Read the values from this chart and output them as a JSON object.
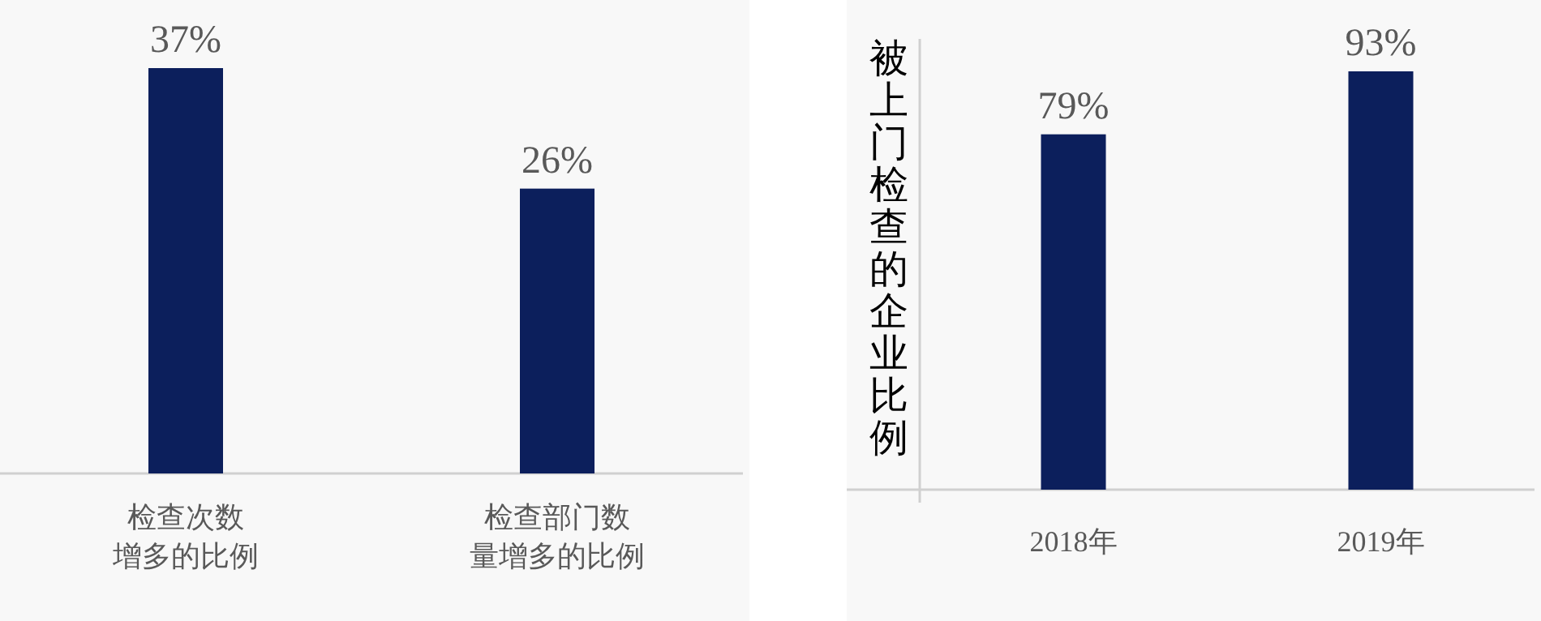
{
  "chart_data": [
    {
      "type": "bar",
      "categories": [
        "检查次数增多的比例",
        "检查部门数量增多的比例"
      ],
      "values": [
        37,
        26
      ],
      "value_labels": [
        "37%",
        "26%"
      ],
      "color": "#0c1f5c"
    },
    {
      "type": "bar",
      "ylabel": "被上门检查的企业比例",
      "categories": [
        "2018年",
        "2019年"
      ],
      "values": [
        79,
        93
      ],
      "value_labels": [
        "79%",
        "93%"
      ],
      "color": "#0c1f5c"
    }
  ]
}
